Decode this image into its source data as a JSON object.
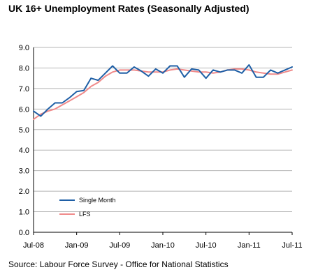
{
  "title": "UK 16+ Unemployment Rates (Seasonally Adjusted)",
  "source": "Source: Labour Force Survey - Office for National Statistics",
  "chart_data": {
    "type": "line",
    "ylim": [
      0,
      9
    ],
    "yticks": [
      "0.0",
      "1.0",
      "2.0",
      "3.0",
      "4.0",
      "5.0",
      "6.0",
      "7.0",
      "8.0",
      "9.0"
    ],
    "xticks": [
      {
        "label": "Jul-08",
        "index": 0
      },
      {
        "label": "Jan-09",
        "index": 6
      },
      {
        "label": "Jul-09",
        "index": 12
      },
      {
        "label": "Jan-10",
        "index": 18
      },
      {
        "label": "Jul-10",
        "index": 24
      },
      {
        "label": "Jan-11",
        "index": 30
      },
      {
        "label": "Jul-11",
        "index": 36
      }
    ],
    "grid": true,
    "legend_position": "bottom-left",
    "series": [
      {
        "name": "Single Month",
        "color": "#1f5fa6",
        "values": [
          5.9,
          5.65,
          6.0,
          6.3,
          6.3,
          6.55,
          6.85,
          6.9,
          7.5,
          7.4,
          7.75,
          8.1,
          7.75,
          7.75,
          8.05,
          7.85,
          7.6,
          7.95,
          7.75,
          8.1,
          8.1,
          7.55,
          7.95,
          7.9,
          7.5,
          7.9,
          7.8,
          7.9,
          7.9,
          7.75,
          8.15,
          7.55,
          7.55,
          7.9,
          7.75,
          7.9,
          8.05
        ]
      },
      {
        "name": "LFS",
        "color": "#f08a8a",
        "values": [
          5.5,
          5.75,
          5.9,
          6.0,
          6.2,
          6.4,
          6.6,
          6.8,
          7.1,
          7.3,
          7.6,
          7.8,
          7.9,
          7.9,
          7.9,
          7.85,
          7.8,
          7.8,
          7.8,
          7.9,
          7.95,
          7.9,
          7.85,
          7.8,
          7.8,
          7.75,
          7.8,
          7.9,
          7.95,
          7.95,
          7.9,
          7.8,
          7.75,
          7.7,
          7.7,
          7.8,
          7.9
        ]
      }
    ]
  }
}
